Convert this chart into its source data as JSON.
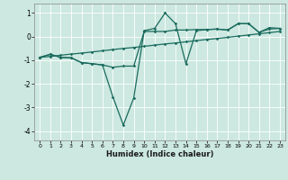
{
  "xlabel": "Humidex (Indice chaleur)",
  "bg_color": "#cce8e0",
  "grid_color": "#b0d4cc",
  "line_color": "#1a6b5e",
  "xlim": [
    -0.5,
    23.5
  ],
  "ylim": [
    -4.4,
    1.4
  ],
  "xticks": [
    0,
    1,
    2,
    3,
    4,
    5,
    6,
    7,
    8,
    9,
    10,
    11,
    12,
    13,
    14,
    15,
    16,
    17,
    18,
    19,
    20,
    21,
    22,
    23
  ],
  "yticks": [
    -4,
    -3,
    -2,
    -1,
    0,
    1
  ],
  "line1_x": [
    0,
    1,
    2,
    3,
    4,
    5,
    6,
    7,
    8,
    9,
    10,
    11,
    12,
    13,
    14,
    15,
    16,
    17,
    18,
    19,
    20,
    21,
    22,
    23
  ],
  "line1_y": [
    -0.88,
    -0.84,
    -0.79,
    -0.74,
    -0.7,
    -0.65,
    -0.6,
    -0.55,
    -0.5,
    -0.46,
    -0.41,
    -0.36,
    -0.31,
    -0.27,
    -0.22,
    -0.17,
    -0.12,
    -0.08,
    -0.03,
    0.02,
    0.07,
    0.12,
    0.17,
    0.22
  ],
  "line2_x": [
    0,
    1,
    2,
    3,
    4,
    5,
    6,
    7,
    8,
    9,
    10,
    11,
    12,
    13,
    14,
    15,
    16,
    17,
    18,
    19,
    20,
    21,
    22,
    23
  ],
  "line2_y": [
    -0.88,
    -0.75,
    -0.88,
    -0.9,
    -1.1,
    -1.15,
    -1.2,
    -2.55,
    -3.75,
    -2.6,
    0.25,
    0.35,
    1.0,
    0.55,
    -1.15,
    0.25,
    0.3,
    0.32,
    0.28,
    0.55,
    0.55,
    0.18,
    0.32,
    0.35
  ],
  "line3_x": [
    0,
    1,
    2,
    3,
    4,
    5,
    6,
    7,
    8,
    9,
    10,
    11,
    12,
    13,
    14,
    15,
    16,
    17,
    18,
    19,
    20,
    21,
    22,
    23
  ],
  "line3_y": [
    -0.88,
    -0.75,
    -0.88,
    -0.9,
    -1.1,
    -1.15,
    -1.2,
    -1.3,
    -1.25,
    -1.25,
    0.22,
    0.22,
    0.22,
    0.28,
    0.28,
    0.3,
    0.3,
    0.32,
    0.28,
    0.55,
    0.55,
    0.18,
    0.38,
    0.35
  ]
}
